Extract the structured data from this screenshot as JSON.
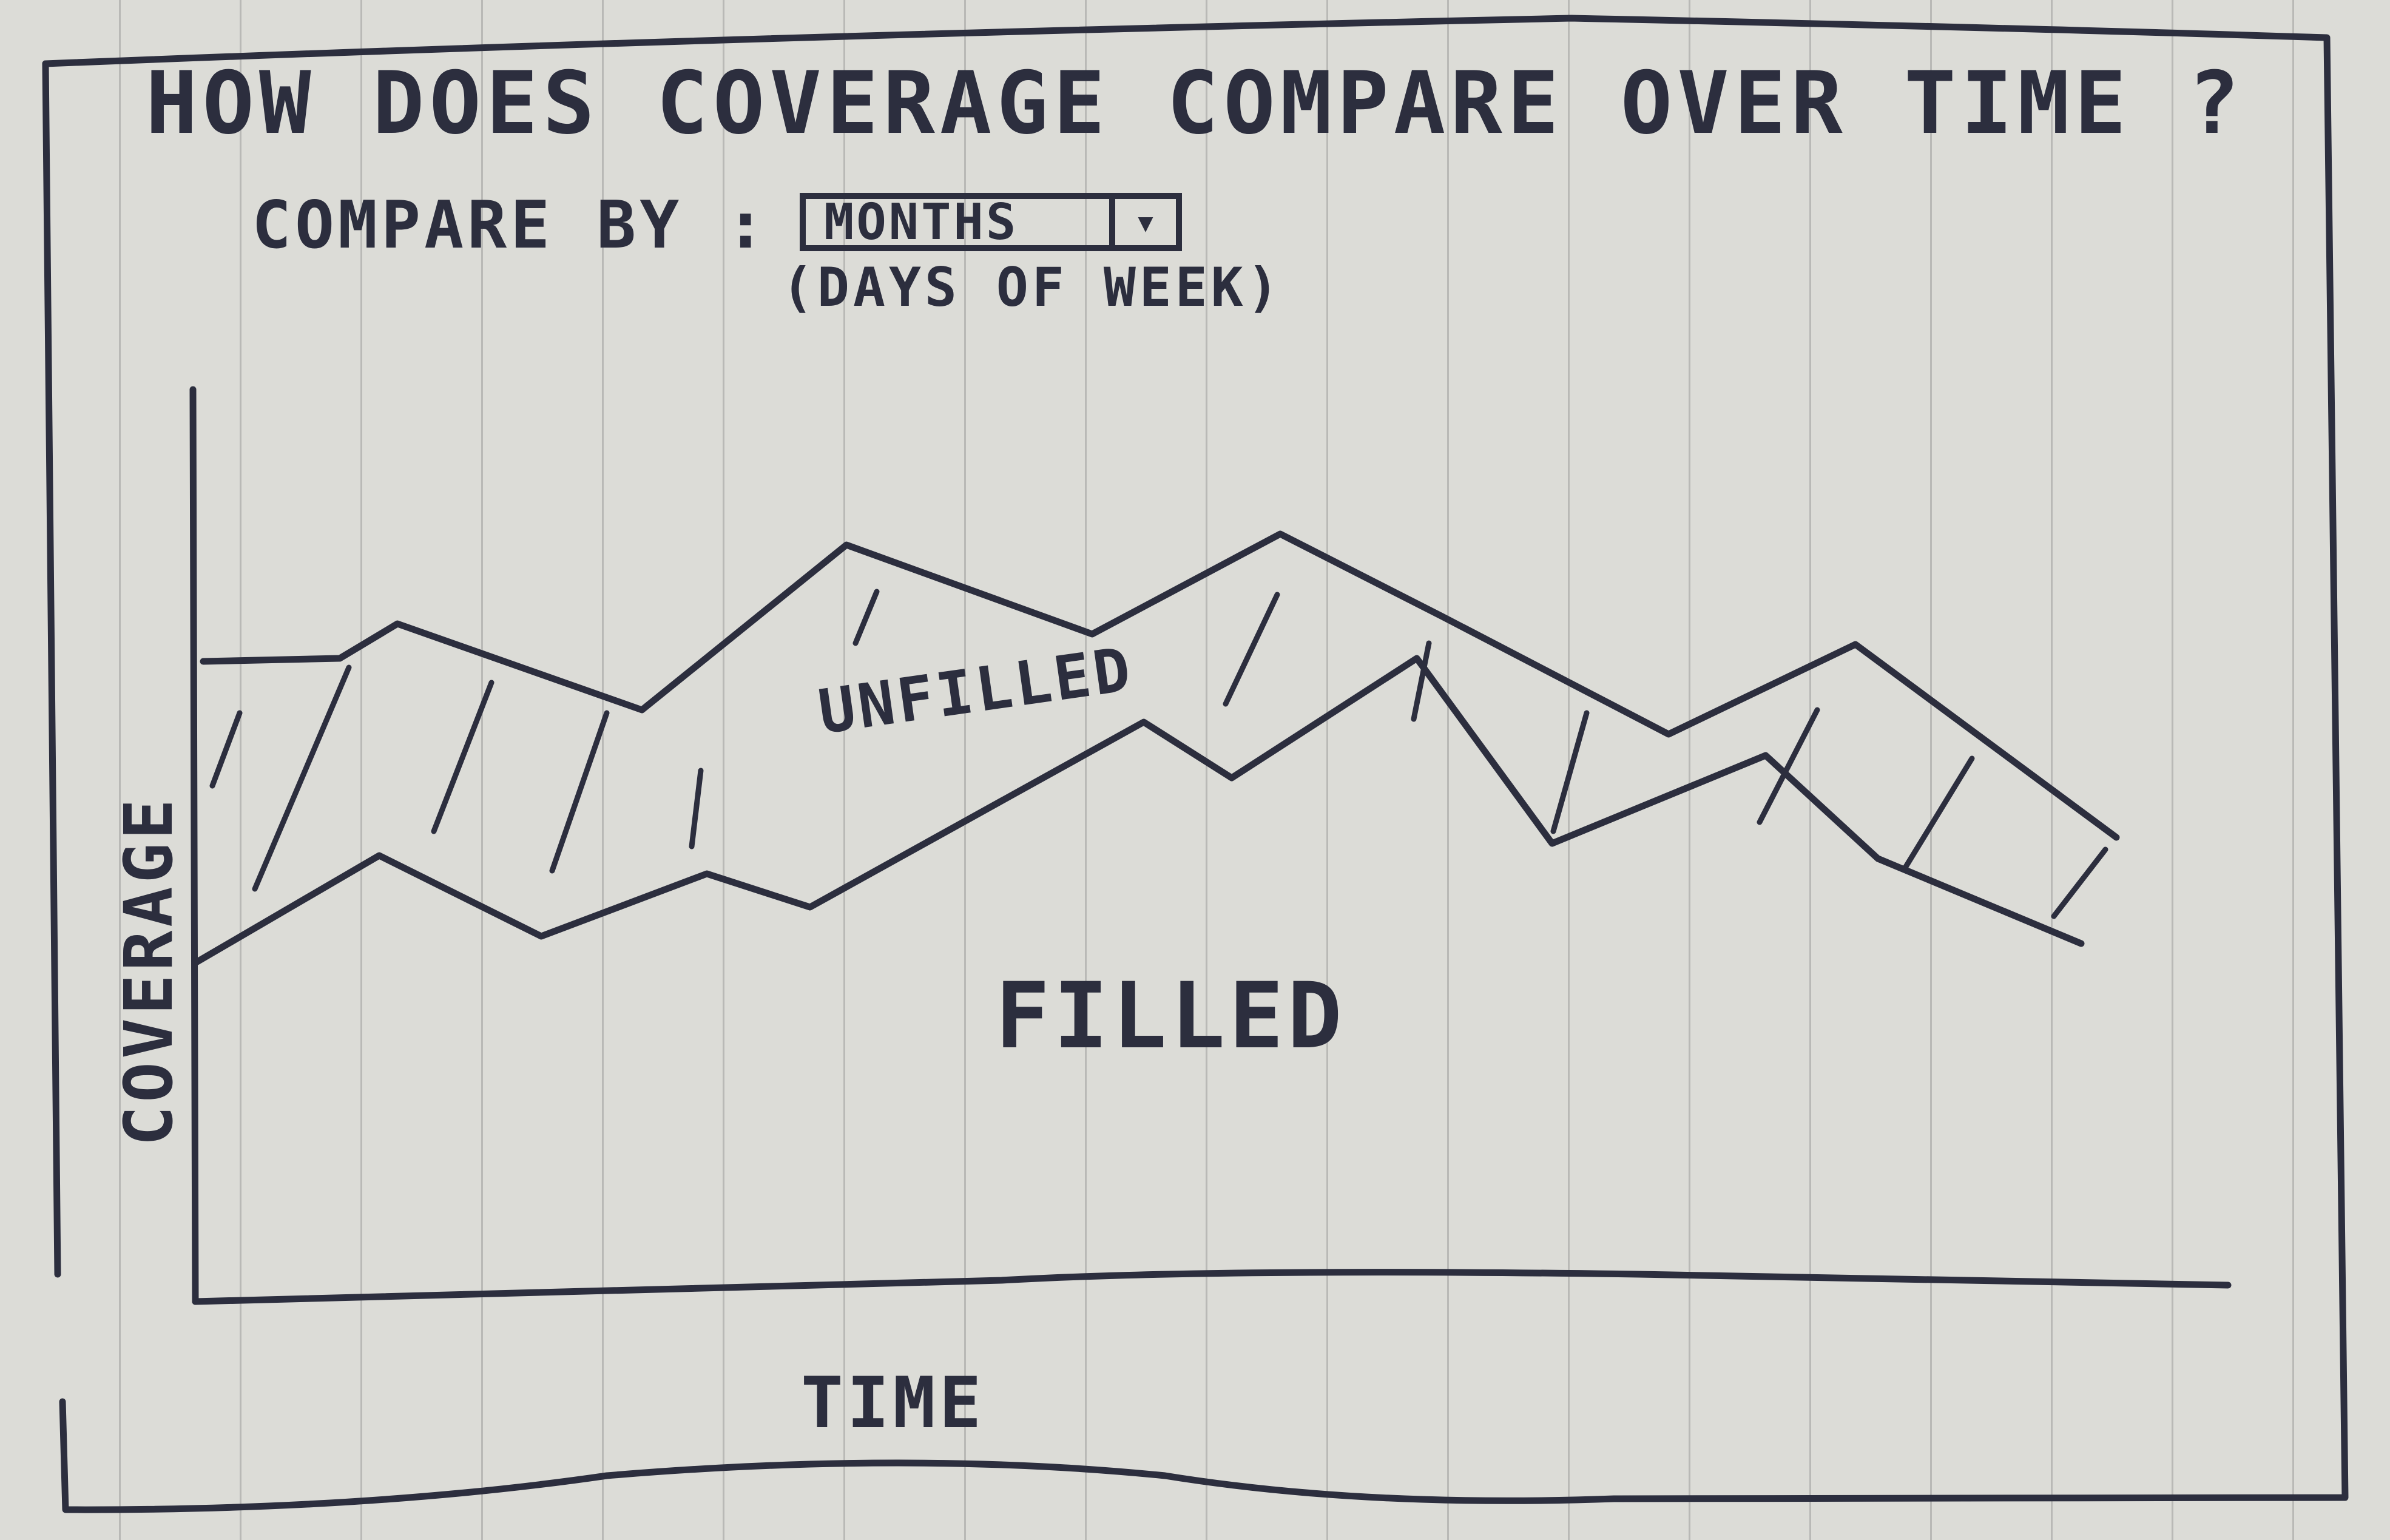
{
  "title": "HOW DOES COVERAGE COMPARE OVER TIME ?",
  "controls": {
    "compare_label": "COMPARE BY :",
    "dropdown_value": "MONTHS",
    "dropdown_arrow_icon": "chevron-down-icon",
    "option_note": "(DAYS OF WEEK)"
  },
  "chart": {
    "xlabel": "TIME",
    "ylabel": "COVERAGE",
    "regions": {
      "unfilled": "UNFILLED",
      "filled": "FILLED"
    }
  },
  "colors": {
    "ink": "#2c2e3e",
    "paper": "#dcdcd7"
  }
}
